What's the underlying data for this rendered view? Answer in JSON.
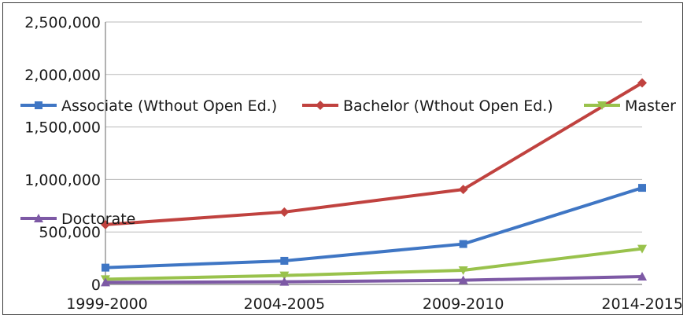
{
  "chart_data": {
    "type": "line",
    "categories": [
      "1999-2000",
      "2004-2005",
      "2009-2010",
      "2014-2015"
    ],
    "ylim": [
      0,
      2500000
    ],
    "yticks": [
      0,
      500000,
      1000000,
      1500000,
      2000000,
      2500000
    ],
    "ytick_labels": [
      "0",
      "500,000",
      "1,000,000",
      "1,500,000",
      "2,000,000",
      "2,500,000"
    ],
    "grid": true,
    "series": [
      {
        "name": "Associate (Wthout Open Ed.)",
        "color": "#3f76c4",
        "marker": "square",
        "values": [
          160000,
          225000,
          385000,
          920000
        ]
      },
      {
        "name": "Bachelor (Wthout Open Ed.)",
        "color": "#c0423f",
        "marker": "diamond",
        "values": [
          570000,
          690000,
          905000,
          1920000
        ]
      },
      {
        "name": "Master",
        "color": "#99c24c",
        "marker": "triangle-down",
        "values": [
          50000,
          85000,
          135000,
          340000
        ]
      },
      {
        "name": "Doctorate",
        "color": "#7d59a5",
        "marker": "triangle-up",
        "values": [
          20000,
          25000,
          40000,
          75000
        ]
      }
    ]
  }
}
